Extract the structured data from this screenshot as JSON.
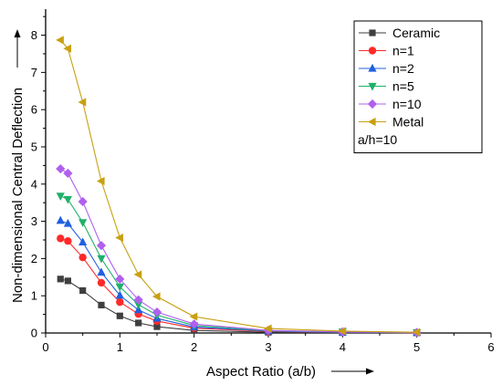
{
  "chart_data": {
    "type": "line",
    "xlabel": "Aspect Ratio (a/b)",
    "ylabel": "Non-dimensional Central Deflection",
    "xlim": [
      0,
      6
    ],
    "ylim": [
      0,
      8.7
    ],
    "xticks": [
      0,
      1,
      2,
      3,
      4,
      5,
      6
    ],
    "yticks": [
      0,
      1,
      2,
      3,
      4,
      5,
      6,
      7,
      8
    ],
    "grid": false,
    "legend_position": "top-right",
    "legend_note": "a/h=10",
    "x": [
      0.2,
      0.3,
      0.5,
      0.75,
      1,
      1.25,
      1.5,
      2,
      3,
      4,
      5
    ],
    "series": [
      {
        "name": "Ceramic",
        "color": "#3f3f3f",
        "marker": "square",
        "values": [
          1.45,
          1.4,
          1.14,
          0.75,
          0.46,
          0.27,
          0.17,
          0.07,
          0.02,
          0.01,
          0.004
        ]
      },
      {
        "name": "n=1",
        "color": "#ff2a2a",
        "marker": "circle",
        "values": [
          2.54,
          2.47,
          2.03,
          1.35,
          0.83,
          0.51,
          0.32,
          0.13,
          0.04,
          0.02,
          0.008
        ]
      },
      {
        "name": "n=2",
        "color": "#2060e0",
        "marker": "triangle-up",
        "values": [
          3.02,
          2.94,
          2.44,
          1.63,
          1.01,
          0.62,
          0.39,
          0.16,
          0.05,
          0.02,
          0.01
        ]
      },
      {
        "name": "n=5",
        "color": "#1fb06a",
        "marker": "triangle-down",
        "values": [
          3.68,
          3.59,
          2.97,
          2.0,
          1.24,
          0.76,
          0.48,
          0.2,
          0.06,
          0.03,
          0.012
        ]
      },
      {
        "name": "n=10",
        "color": "#b060ee",
        "marker": "diamond",
        "values": [
          4.41,
          4.29,
          3.53,
          2.35,
          1.45,
          0.89,
          0.56,
          0.24,
          0.07,
          0.03,
          0.014
        ]
      },
      {
        "name": "Metal",
        "color": "#c8a010",
        "marker": "triangle-left",
        "values": [
          7.87,
          7.64,
          6.2,
          4.08,
          2.56,
          1.57,
          0.98,
          0.44,
          0.12,
          0.05,
          0.02
        ]
      }
    ]
  }
}
